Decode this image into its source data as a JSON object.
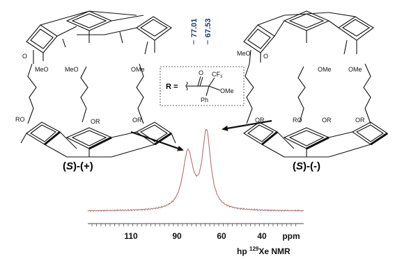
{
  "left_molecule": {
    "name": "(S)-(+)",
    "name_parts": {
      "open": "(",
      "s": "S",
      "mid": ")-(",
      "sign": "+",
      "close": ")"
    },
    "substituents": {
      "ome_1": "MeO",
      "ome_2": "MeO",
      "ome_3": "OMe",
      "ro_1": "RO",
      "or_1": "OR",
      "or_2": "OR",
      "o": "O"
    }
  },
  "right_molecule": {
    "name": "(S)-(-)",
    "name_parts": {
      "open": "(",
      "s": "S",
      "mid": ")-(",
      "sign": "-",
      "close": ")"
    },
    "substituents": {
      "meo_1": "MeO",
      "ome_1": "OMe",
      "ome_2": "OMe",
      "or_1": "OR",
      "ro_1": "RO",
      "or_2": "OR",
      "or_3": "OR",
      "o": "O"
    }
  },
  "r_group": {
    "r": "R =",
    "carbonyl_o": "O",
    "cf3": "CF",
    "cf3_sub": "3",
    "ome": "OMe",
    "ph": "Ph"
  },
  "peak_labels": [
    "77.01",
    "67.53"
  ],
  "spectrum": {
    "axis_ticks": [
      "110",
      "90",
      "60",
      "40"
    ],
    "axis_unit": "ppm",
    "title_prefix": "hp ",
    "title_isotope": "129",
    "title_suffix": "Xe NMR",
    "line_color": "#b07070",
    "peaks_ppm": [
      77.01,
      67.53
    ],
    "peak_relative_heights": [
      0.74,
      1.0
    ],
    "x_range_ppm": [
      128,
      18
    ]
  }
}
